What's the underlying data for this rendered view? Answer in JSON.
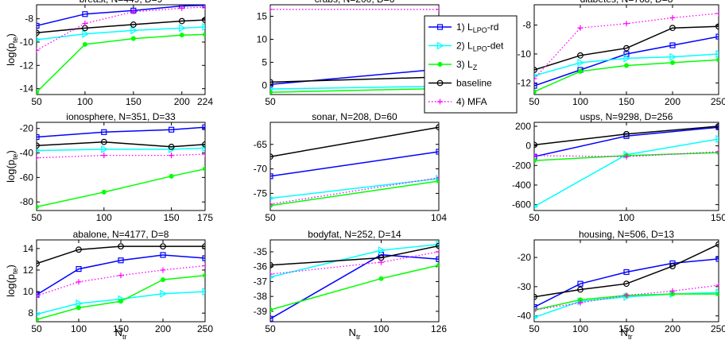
{
  "figure": {
    "ylabel_main": "log(p",
    "ylabel_sub": "te",
    "ylabel_close": ")",
    "xlabel_main": "N",
    "xlabel_sub": "tr"
  },
  "legend": {
    "entries": [
      {
        "key": "lpo_rd",
        "prefix": "1) L",
        "sub": "LPO",
        "suffix": "-rd",
        "color": "#0000ff",
        "marker": "square"
      },
      {
        "key": "lpo_det",
        "prefix": "2) L",
        "sub": "LPO",
        "suffix": "-det",
        "color": "#00ffff",
        "marker": "triangle"
      },
      {
        "key": "lz",
        "prefix": "3) L",
        "sub": "Z",
        "suffix": "",
        "color": "#00ff00",
        "marker": "dot"
      },
      {
        "key": "baseline",
        "prefix": "baseline",
        "sub": "",
        "suffix": "",
        "color": "#000000",
        "marker": "circle"
      },
      {
        "key": "mfa",
        "prefix": "4) MFA",
        "sub": "",
        "suffix": "",
        "color": "#ff00ff",
        "marker": "plus",
        "dotted": true
      }
    ]
  },
  "chart_data": [
    {
      "type": "line",
      "title": "breast, N=449, D=9",
      "xticks": [
        50,
        100,
        150,
        200,
        224
      ],
      "xlim": [
        50,
        224
      ],
      "yticks": [
        -14,
        -12,
        -10,
        -8
      ],
      "ylim": [
        -14.5,
        -6.8
      ],
      "x": [
        50,
        100,
        150,
        200,
        224
      ],
      "series": [
        {
          "key": "lpo_rd",
          "values": [
            -8.6,
            -7.6,
            -7.3,
            -6.9,
            -6.85
          ]
        },
        {
          "key": "lpo_det",
          "values": [
            -9.8,
            -9.3,
            -9.0,
            -8.8,
            -8.7
          ]
        },
        {
          "key": "lz",
          "values": [
            -14.3,
            -10.2,
            -9.7,
            -9.4,
            -9.35
          ]
        },
        {
          "key": "baseline",
          "values": [
            -9.2,
            -8.8,
            -8.5,
            -8.2,
            -8.1
          ]
        },
        {
          "key": "mfa",
          "values": [
            -10.7,
            -8.4,
            -7.4,
            -7.1,
            -7.0
          ]
        }
      ]
    },
    {
      "type": "line",
      "title": "crabs, N=200, D=6",
      "xticks": [
        50,
        100
      ],
      "xlim": [
        50,
        100
      ],
      "yticks": [
        0,
        5,
        10,
        15
      ],
      "ylim": [
        -2,
        17.5
      ],
      "x": [
        50,
        100
      ],
      "series": [
        {
          "key": "lpo_rd",
          "values": [
            0.2,
            3.5
          ]
        },
        {
          "key": "lpo_det",
          "values": [
            -0.8,
            -0.2
          ]
        },
        {
          "key": "lz",
          "values": [
            -1.5,
            -0.7
          ]
        },
        {
          "key": "baseline",
          "values": [
            0.7,
            1.8
          ]
        },
        {
          "key": "mfa",
          "values": [
            16.5,
            16.5
          ]
        }
      ]
    },
    {
      "type": "line",
      "title": "diabetes, N=768, D=8",
      "xticks": [
        50,
        100,
        150,
        200,
        250
      ],
      "xlim": [
        50,
        250
      ],
      "yticks": [
        -12,
        -10,
        -8
      ],
      "ylim": [
        -12.8,
        -6.6
      ],
      "x": [
        50,
        100,
        150,
        200,
        250
      ],
      "series": [
        {
          "key": "lpo_rd",
          "values": [
            -12.2,
            -11.1,
            -10.0,
            -9.4,
            -8.8
          ]
        },
        {
          "key": "lpo_det",
          "values": [
            -11.5,
            -10.6,
            -10.3,
            -10.2,
            -10.0
          ]
        },
        {
          "key": "lz",
          "values": [
            -12.6,
            -11.2,
            -10.8,
            -10.6,
            -10.4
          ]
        },
        {
          "key": "baseline",
          "values": [
            -11.1,
            -10.1,
            -9.6,
            -8.2,
            -8.1
          ]
        },
        {
          "key": "mfa",
          "values": [
            -11.7,
            -8.2,
            -7.9,
            -7.5,
            -7.2
          ]
        }
      ]
    },
    {
      "type": "line",
      "title": "ionosphere, N=351, D=33",
      "xticks": [
        50,
        100,
        150,
        175
      ],
      "xlim": [
        50,
        175
      ],
      "yticks": [
        -80,
        -60,
        -40,
        -20
      ],
      "ylim": [
        -87,
        -15
      ],
      "x": [
        50,
        100,
        150,
        175
      ],
      "series": [
        {
          "key": "lpo_rd",
          "values": [
            -27,
            -23,
            -21,
            -19
          ]
        },
        {
          "key": "lpo_det",
          "values": [
            -38,
            -37,
            -37,
            -36
          ]
        },
        {
          "key": "lz",
          "values": [
            -84,
            -72,
            -59,
            -53
          ]
        },
        {
          "key": "baseline",
          "values": [
            -34,
            -31,
            -35,
            -33
          ]
        },
        {
          "key": "mfa",
          "values": [
            -44,
            -42,
            -42,
            -41
          ]
        }
      ]
    },
    {
      "type": "line",
      "title": "sonar, N=208, D=60",
      "xticks": [
        50,
        104
      ],
      "xlim": [
        50,
        104
      ],
      "yticks": [
        -75,
        -70,
        -65
      ],
      "ylim": [
        -78.5,
        -60.5
      ],
      "x": [
        50,
        104
      ],
      "series": [
        {
          "key": "lpo_rd",
          "values": [
            -71.5,
            -66.5
          ]
        },
        {
          "key": "lpo_det",
          "values": [
            -76.0,
            -72.0
          ]
        },
        {
          "key": "lz",
          "values": [
            -77.5,
            -72.5
          ]
        },
        {
          "key": "baseline",
          "values": [
            -67.5,
            -61.5
          ]
        },
        {
          "key": "mfa",
          "values": [
            -77.2,
            -71.8
          ]
        }
      ]
    },
    {
      "type": "line",
      "title": "usps, N=9298, D=256",
      "xticks": [
        50,
        100,
        150
      ],
      "xlim": [
        50,
        150
      ],
      "yticks": [
        -600,
        -400,
        -200,
        0,
        200
      ],
      "ylim": [
        -660,
        240
      ],
      "x": [
        50,
        100,
        150
      ],
      "series": [
        {
          "key": "lpo_rd",
          "values": [
            -110,
            100,
            190
          ]
        },
        {
          "key": "lpo_det",
          "values": [
            -620,
            -90,
            70
          ]
        },
        {
          "key": "lz",
          "values": [
            -150,
            -100,
            -70
          ]
        },
        {
          "key": "baseline",
          "values": [
            10,
            120,
            200
          ]
        },
        {
          "key": "mfa",
          "values": [
            -100,
            -110,
            -60
          ]
        }
      ]
    },
    {
      "type": "line",
      "title": "abalone, N=4177, D=8",
      "xticks": [
        50,
        100,
        150,
        200,
        250
      ],
      "xlim": [
        50,
        250
      ],
      "yticks": [
        8,
        10,
        12,
        14
      ],
      "ylim": [
        7.2,
        14.8
      ],
      "x": [
        50,
        100,
        150,
        200,
        250
      ],
      "series": [
        {
          "key": "lpo_rd",
          "values": [
            9.7,
            12.1,
            12.9,
            13.4,
            13.1
          ]
        },
        {
          "key": "lpo_det",
          "values": [
            7.9,
            8.9,
            9.3,
            9.8,
            10.0
          ]
        },
        {
          "key": "lz",
          "values": [
            7.4,
            8.5,
            9.1,
            11.1,
            11.5
          ]
        },
        {
          "key": "baseline",
          "values": [
            12.6,
            13.9,
            14.2,
            14.2,
            14.2
          ]
        },
        {
          "key": "mfa",
          "values": [
            9.6,
            10.9,
            11.5,
            12.0,
            12.4
          ]
        }
      ]
    },
    {
      "type": "line",
      "title": "bodyfat, N=252, D=14",
      "xticks": [
        50,
        100,
        126
      ],
      "xlim": [
        50,
        126
      ],
      "yticks": [
        -39,
        -38,
        -37,
        -36,
        -35
      ],
      "ylim": [
        -39.7,
        -34.2
      ],
      "x": [
        50,
        100,
        126
      ],
      "series": [
        {
          "key": "lpo_rd",
          "values": [
            -39.5,
            -35.2,
            -35.5
          ]
        },
        {
          "key": "lpo_det",
          "values": [
            -36.7,
            -34.9,
            -34.5
          ]
        },
        {
          "key": "lz",
          "values": [
            -38.9,
            -36.8,
            -35.9
          ]
        },
        {
          "key": "baseline",
          "values": [
            -35.9,
            -35.4,
            -34.6
          ]
        },
        {
          "key": "mfa",
          "values": [
            -36.5,
            -35.7,
            -35.0
          ]
        }
      ]
    },
    {
      "type": "line",
      "title": "housing, N=506, D=13",
      "xticks": [
        50,
        100,
        150,
        200,
        250
      ],
      "xlim": [
        50,
        250
      ],
      "yticks": [
        -40,
        -30,
        -20
      ],
      "ylim": [
        -42,
        -14
      ],
      "x": [
        50,
        100,
        150,
        200,
        250
      ],
      "series": [
        {
          "key": "lpo_rd",
          "values": [
            -37,
            -29,
            -25,
            -22,
            -20.5
          ]
        },
        {
          "key": "lpo_det",
          "values": [
            -40.5,
            -35,
            -33.5,
            -32.5,
            -32
          ]
        },
        {
          "key": "lz",
          "values": [
            -38,
            -34.5,
            -33,
            -32.5,
            -32.5
          ]
        },
        {
          "key": "baseline",
          "values": [
            -33.5,
            -31,
            -29,
            -23,
            -15.5
          ]
        },
        {
          "key": "mfa",
          "values": [
            -38,
            -35.5,
            -33,
            -31.5,
            -29.5
          ]
        }
      ]
    }
  ]
}
